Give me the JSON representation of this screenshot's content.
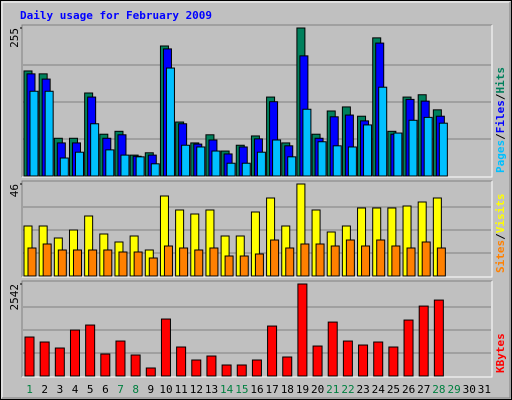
{
  "title": "Daily usage for February 2009",
  "title_color": "#0000ff",
  "chart_data": [
    {
      "type": "bar",
      "ylim": [
        0,
        255
      ],
      "yticks": [
        255
      ],
      "legend_separator": "/",
      "series": [
        {
          "name": "Hits",
          "color": "#00805c",
          "values": [
            181,
            176,
            65,
            65,
            143,
            72,
            77,
            36,
            40,
            224,
            93,
            57,
            71,
            43,
            53,
            69,
            136,
            57,
            255,
            72,
            112,
            119,
            103,
            238,
            77,
            136,
            140,
            114,
            null,
            null,
            null
          ]
        },
        {
          "name": "Files",
          "color": "#0000ff",
          "values": [
            176,
            167,
            57,
            57,
            136,
            65,
            71,
            34,
            36,
            219,
            90,
            55,
            62,
            38,
            50,
            64,
            128,
            52,
            207,
            65,
            102,
            105,
            95,
            229,
            72,
            132,
            129,
            103,
            null,
            null,
            null
          ]
        },
        {
          "name": "Pages",
          "color": "#00c0ff",
          "values": [
            146,
            146,
            31,
            41,
            90,
            45,
            36,
            33,
            21,
            186,
            53,
            50,
            43,
            22,
            22,
            41,
            62,
            33,
            115,
            59,
            52,
            50,
            88,
            153,
            74,
            96,
            101,
            91,
            null,
            null,
            null
          ]
        }
      ]
    },
    {
      "type": "bar",
      "ylim": [
        0,
        46
      ],
      "yticks": [
        46
      ],
      "legend_separator": "/",
      "series": [
        {
          "name": "Visits",
          "color": "#ffff00",
          "values": [
            25,
            25,
            19,
            23,
            30,
            21,
            17,
            20,
            13,
            40,
            33,
            31,
            33,
            20,
            20,
            32,
            39,
            25,
            46,
            33,
            22,
            25,
            34,
            34,
            34,
            35,
            37,
            39,
            null,
            null,
            null
          ]
        },
        {
          "name": "Sites",
          "color": "#ff8000",
          "values": [
            14,
            16,
            13,
            13,
            13,
            13,
            12,
            12,
            9,
            15,
            14,
            13,
            14,
            10,
            10,
            11,
            18,
            14,
            16,
            16,
            15,
            18,
            15,
            18,
            15,
            14,
            17,
            14,
            null,
            null,
            null
          ]
        }
      ]
    },
    {
      "type": "bar",
      "ylim": [
        0,
        2542
      ],
      "yticks": [
        2542
      ],
      "legend_separator": "/",
      "series": [
        {
          "name": "KBytes",
          "color": "#ff0000",
          "values": [
            1077,
            939,
            773,
            1270,
            1408,
            607,
            966,
            580,
            221,
            1574,
            801,
            442,
            552,
            304,
            304,
            442,
            1380,
            525,
            2542,
            828,
            1490,
            966,
            856,
            939,
            801,
            1546,
            1932,
            2098,
            null,
            null,
            null
          ]
        }
      ],
      "categories": [
        "1",
        "2",
        "3",
        "4",
        "5",
        "6",
        "7",
        "8",
        "9",
        "10",
        "11",
        "12",
        "13",
        "14",
        "15",
        "16",
        "17",
        "18",
        "19",
        "20",
        "21",
        "22",
        "23",
        "24",
        "25",
        "26",
        "27",
        "28",
        "29",
        "30",
        "31"
      ],
      "highlighted_categories": [
        1,
        7,
        8,
        14,
        15,
        21,
        22,
        28,
        29
      ],
      "highlight_color": "#008040"
    }
  ]
}
